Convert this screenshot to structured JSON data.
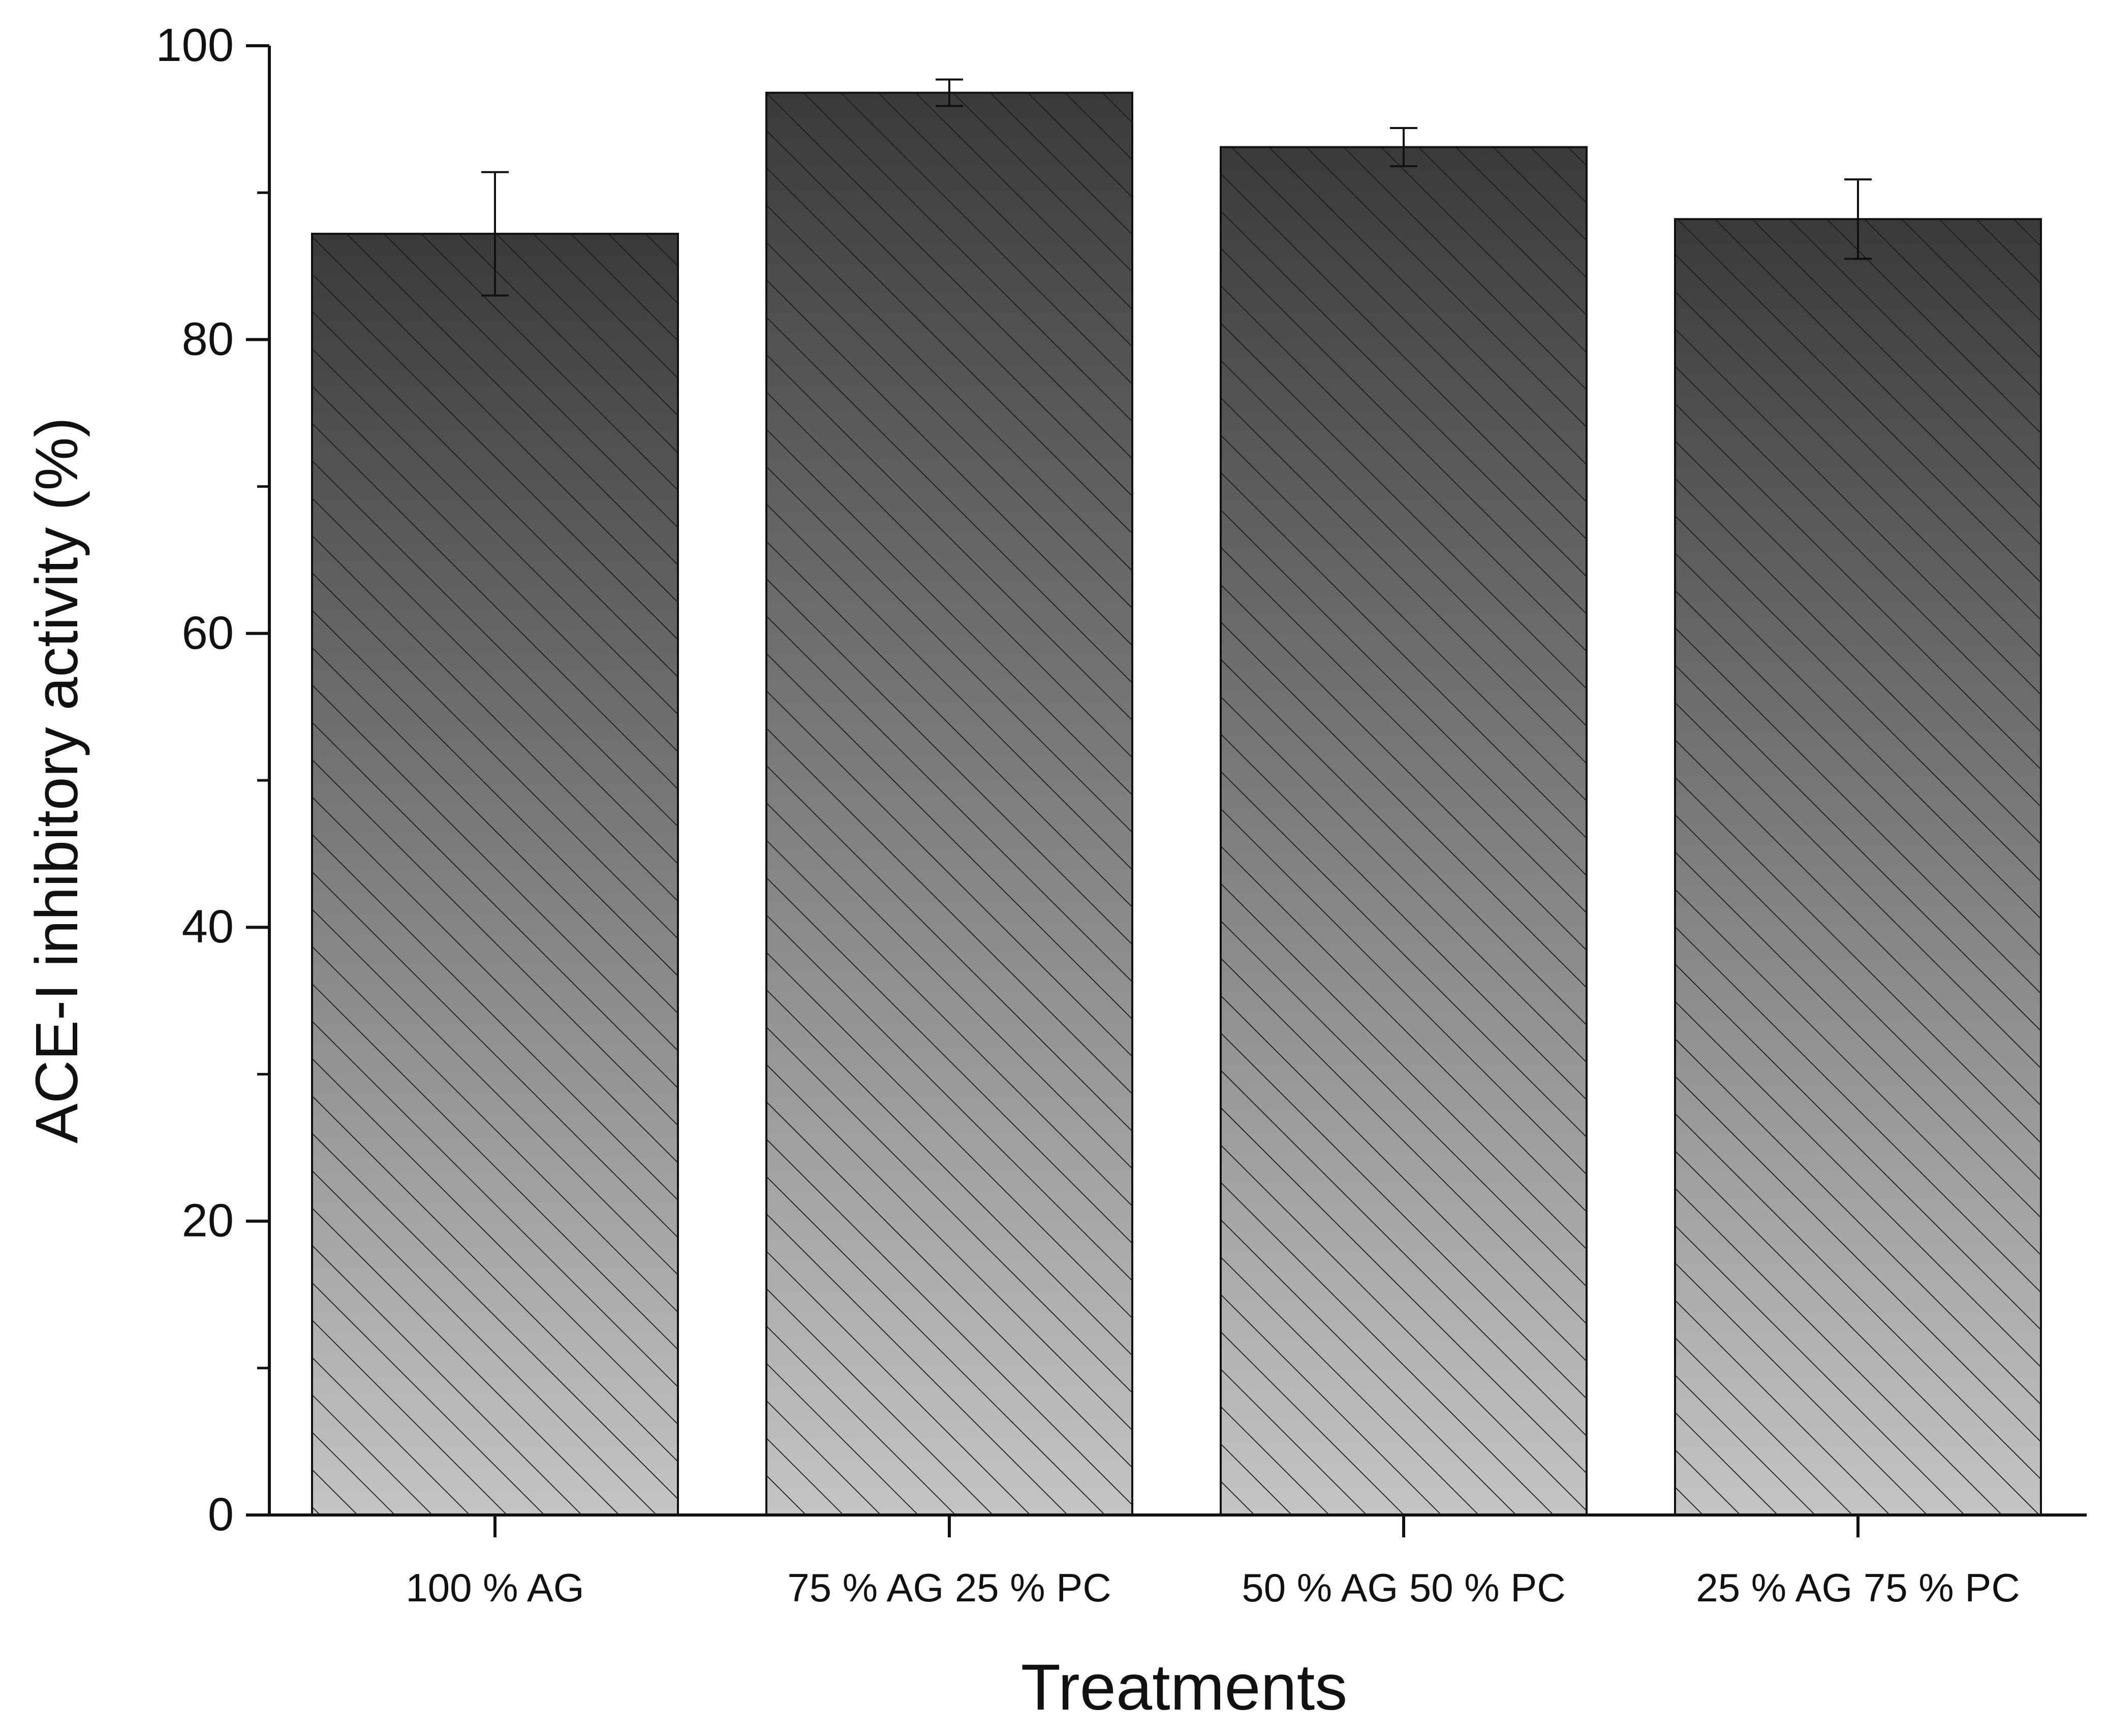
{
  "chart_data": {
    "type": "bar",
    "title": "",
    "xlabel": "Treatments",
    "ylabel": "ACE-I inhibitory activity (%)",
    "categories": [
      "100 % AG",
      "75 % AG 25 % PC",
      "50 % AG 50 % PC",
      "25 % AG 75 % PC"
    ],
    "values": [
      87.2,
      96.8,
      93.1,
      88.2
    ],
    "error": [
      4.2,
      0.9,
      1.3,
      2.7
    ],
    "ylim": [
      0,
      100
    ],
    "yticks": [
      0,
      20,
      40,
      60,
      80,
      100
    ],
    "ytick_labels": [
      "0",
      "20",
      "40",
      "60",
      "80",
      "100"
    ],
    "minor_yticks": [
      10,
      30,
      50,
      70,
      90
    ],
    "grid": false,
    "legend": "none",
    "fill": {
      "pattern": "diagonal-hatch",
      "gradient_top": "#3a3a3a",
      "gradient_bottom": "#c4c4c4",
      "hatch_color": "#1a1a1a",
      "edge_color": "#111111"
    },
    "axis_color": "#111111"
  }
}
